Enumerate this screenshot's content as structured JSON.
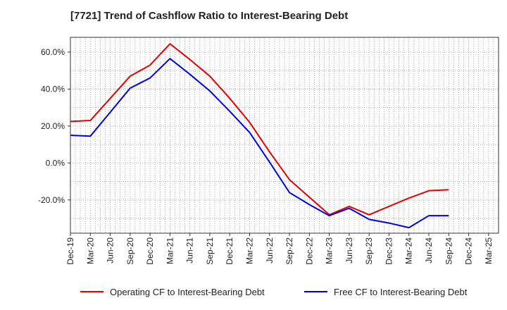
{
  "chart_data": {
    "type": "line",
    "title": "[7721]  Trend of Cashflow Ratio to Interest-Bearing Debt",
    "xlabel": "",
    "ylabel": "",
    "categories": [
      "Dec-19",
      "Mar-20",
      "Jun-20",
      "Sep-20",
      "Dec-20",
      "Mar-21",
      "Jun-21",
      "Sep-21",
      "Dec-21",
      "Mar-22",
      "Jun-22",
      "Sep-22",
      "Dec-22",
      "Mar-23",
      "Jun-23",
      "Sep-23",
      "Dec-23",
      "Mar-24",
      "Jun-24",
      "Sep-24",
      "Dec-24",
      "Mar-25"
    ],
    "x_ticks": [
      "Dec-19",
      "Mar-20",
      "Jun-20",
      "Sep-20",
      "Dec-20",
      "Mar-21",
      "Jun-21",
      "Sep-21",
      "Dec-21",
      "Mar-22",
      "Jun-22",
      "Sep-22",
      "Dec-22",
      "Mar-23",
      "Jun-23",
      "Sep-23",
      "Dec-23",
      "Mar-24",
      "Jun-24",
      "Sep-24",
      "Dec-24",
      "Mar-25"
    ],
    "y_ticks": [
      60,
      40,
      20,
      0,
      -20
    ],
    "y_tick_labels": [
      "60.0%",
      "40.0%",
      "20.0%",
      "0.0%",
      "-20.0%"
    ],
    "ylim": [
      -38,
      68
    ],
    "grid": true,
    "legend_position": "bottom",
    "series": [
      {
        "name": "Operating CF to Interest-Bearing Debt",
        "color": "#e60000",
        "values": [
          22.5,
          23.0,
          35.0,
          47.0,
          53.0,
          64.5,
          56.0,
          47.0,
          35.0,
          22.0,
          6.0,
          -9.0,
          -18.5,
          -28.0,
          -23.5,
          -28.0,
          -23.5,
          -19.0,
          -15.0,
          -14.5,
          null,
          null
        ]
      },
      {
        "name": "Free CF to Interest-Bearing Debt",
        "color": "#0000e6",
        "values": [
          15.0,
          14.5,
          27.5,
          40.5,
          46.0,
          56.5,
          48.0,
          39.0,
          28.0,
          16.5,
          0.5,
          -16.0,
          -22.5,
          -28.5,
          -24.5,
          -30.5,
          -32.5,
          -35.0,
          -28.5,
          -28.5,
          null,
          null
        ]
      }
    ]
  }
}
